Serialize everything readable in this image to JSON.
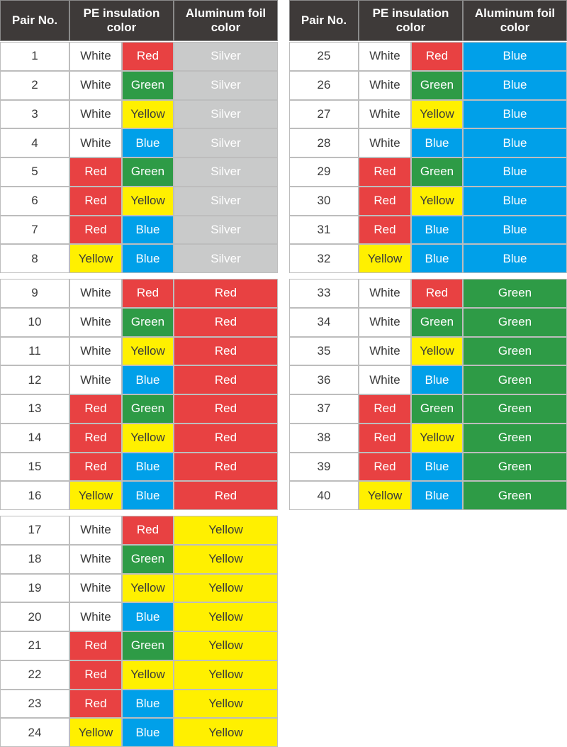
{
  "palette": {
    "White": {
      "bg": "#ffffff",
      "fg": "#3a3a3a"
    },
    "Red": {
      "bg": "#e84142",
      "fg": "#ffffff"
    },
    "Green": {
      "bg": "#2e9b46",
      "fg": "#ffffff"
    },
    "Yellow": {
      "bg": "#fff000",
      "fg": "#3a3a3a"
    },
    "Blue": {
      "bg": "#00a0e9",
      "fg": "#ffffff"
    },
    "Silver": {
      "bg": "#c9caca",
      "fg": "#ffffff"
    }
  },
  "tables": [
    {
      "header": [
        "Pair No.",
        "PE insulation color",
        "Aluminum foil color"
      ],
      "groups": [
        [
          [
            1,
            "White",
            "Red",
            "Silver"
          ],
          [
            2,
            "White",
            "Green",
            "Silver"
          ],
          [
            3,
            "White",
            "Yellow",
            "Silver"
          ],
          [
            4,
            "White",
            "Blue",
            "Silver"
          ],
          [
            5,
            "Red",
            "Green",
            "Silver"
          ],
          [
            6,
            "Red",
            "Yellow",
            "Silver"
          ],
          [
            7,
            "Red",
            "Blue",
            "Silver"
          ],
          [
            8,
            "Yellow",
            "Blue",
            "Silver"
          ]
        ],
        [
          [
            9,
            "White",
            "Red",
            "Red"
          ],
          [
            10,
            "White",
            "Green",
            "Red"
          ],
          [
            11,
            "White",
            "Yellow",
            "Red"
          ],
          [
            12,
            "White",
            "Blue",
            "Red"
          ],
          [
            13,
            "Red",
            "Green",
            "Red"
          ],
          [
            14,
            "Red",
            "Yellow",
            "Red"
          ],
          [
            15,
            "Red",
            "Blue",
            "Red"
          ],
          [
            16,
            "Yellow",
            "Blue",
            "Red"
          ]
        ],
        [
          [
            17,
            "White",
            "Red",
            "Yellow"
          ],
          [
            18,
            "White",
            "Green",
            "Yellow"
          ],
          [
            19,
            "White",
            "Yellow",
            "Yellow"
          ],
          [
            20,
            "White",
            "Blue",
            "Yellow"
          ],
          [
            21,
            "Red",
            "Green",
            "Yellow"
          ],
          [
            22,
            "Red",
            "Yellow",
            "Yellow"
          ],
          [
            23,
            "Red",
            "Blue",
            "Yellow"
          ],
          [
            24,
            "Yellow",
            "Blue",
            "Yellow"
          ]
        ]
      ]
    },
    {
      "header": [
        "Pair No.",
        "PE insulation color",
        "Aluminum foil color"
      ],
      "groups": [
        [
          [
            25,
            "White",
            "Red",
            "Blue"
          ],
          [
            26,
            "White",
            "Green",
            "Blue"
          ],
          [
            27,
            "White",
            "Yellow",
            "Blue"
          ],
          [
            28,
            "White",
            "Blue",
            "Blue"
          ],
          [
            29,
            "Red",
            "Green",
            "Blue"
          ],
          [
            30,
            "Red",
            "Yellow",
            "Blue"
          ],
          [
            31,
            "Red",
            "Blue",
            "Blue"
          ],
          [
            32,
            "Yellow",
            "Blue",
            "Blue"
          ]
        ],
        [
          [
            33,
            "White",
            "Red",
            "Green"
          ],
          [
            34,
            "White",
            "Green",
            "Green"
          ],
          [
            35,
            "White",
            "Yellow",
            "Green"
          ],
          [
            36,
            "White",
            "Blue",
            "Green"
          ],
          [
            37,
            "Red",
            "Green",
            "Green"
          ],
          [
            38,
            "Red",
            "Yellow",
            "Green"
          ],
          [
            39,
            "Red",
            "Blue",
            "Green"
          ],
          [
            40,
            "Yellow",
            "Blue",
            "Green"
          ]
        ]
      ]
    }
  ]
}
